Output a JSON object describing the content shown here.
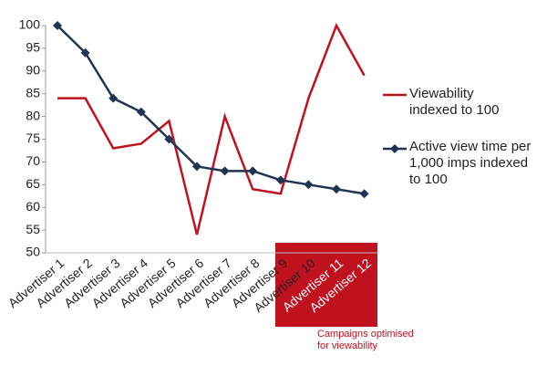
{
  "chart_data": {
    "type": "line",
    "categories": [
      "Advertiser 1",
      "Advertiser 2",
      "Advertiser 3",
      "Advertiser 4",
      "Advertiser 5",
      "Advertiser 6",
      "Advertiser 7",
      "Advertiser 8",
      "Advertiser 9",
      "Advertiser 10",
      "Advertiser 11",
      "Advertiser 12"
    ],
    "series": [
      {
        "name": "Viewability indexed to 100",
        "color": "#c0111f",
        "values": [
          84,
          84,
          73,
          74,
          79,
          54,
          80,
          64,
          63,
          84,
          100,
          89
        ]
      },
      {
        "name": "Active view time per 1,000 imps indexed to 100",
        "color": "#1f3552",
        "values": [
          100,
          94,
          84,
          81,
          75,
          69,
          68,
          68,
          66,
          65,
          64,
          63
        ]
      }
    ],
    "ylim": [
      50,
      100
    ],
    "yticks": [
      50,
      55,
      60,
      65,
      70,
      75,
      80,
      85,
      90,
      95,
      100
    ],
    "annotation": "Campaigns optimised for viewability",
    "legend": "right"
  }
}
